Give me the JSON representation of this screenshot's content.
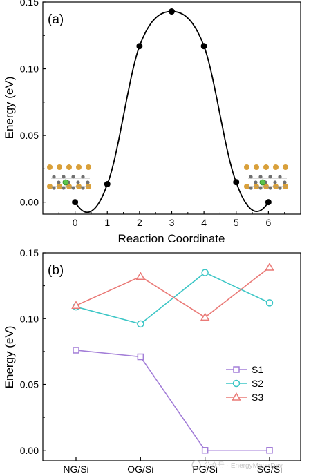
{
  "chart_data": [
    {
      "type": "line",
      "panel_label": "(a)",
      "xlabel": "Reaction Coordinate",
      "ylabel": "Energy (eV)",
      "xlim": [
        -1,
        7
      ],
      "ylim": [
        -0.009,
        0.15
      ],
      "xticks": [
        0,
        1,
        2,
        3,
        4,
        5,
        6
      ],
      "yticks": [
        0.0,
        0.05,
        0.1,
        0.15
      ],
      "ytick_labels": [
        "0.00",
        "0.05",
        "0.10",
        "0.15"
      ],
      "series": [
        {
          "x": [
            0,
            1,
            2,
            3,
            4,
            5,
            6
          ],
          "y": [
            0.0,
            0.0135,
            0.117,
            0.143,
            0.117,
            0.015,
            0.0
          ],
          "color": "#000000",
          "marker": "filled-circle",
          "smooth": true
        }
      ],
      "insets": [
        "atomic-structure-initial",
        "atomic-structure-final"
      ],
      "grid": false
    },
    {
      "type": "line",
      "panel_label": "(b)",
      "ylabel": "Energy (eV)",
      "categories": [
        "NG/Si",
        "OG/Si",
        "PG/Si",
        "SG/Si"
      ],
      "ylim": [
        -0.008,
        0.15
      ],
      "yticks": [
        0.0,
        0.05,
        0.1,
        0.15
      ],
      "ytick_labels": [
        "0.00",
        "0.05",
        "0.10",
        "0.15"
      ],
      "series": [
        {
          "name": "S1",
          "values": [
            0.076,
            0.071,
            0.0,
            0.0
          ],
          "color": "#a37ed8",
          "marker": "square"
        },
        {
          "name": "S2",
          "values": [
            0.109,
            0.096,
            0.135,
            0.112
          ],
          "color": "#3cc6c6",
          "marker": "circle"
        },
        {
          "name": "S3",
          "values": [
            0.11,
            0.132,
            0.101,
            0.139
          ],
          "color": "#ea7a77",
          "marker": "triangle"
        }
      ],
      "legend": "center-right",
      "grid": false
    }
  ],
  "watermark": "公众号 · EnergyMaterDev"
}
